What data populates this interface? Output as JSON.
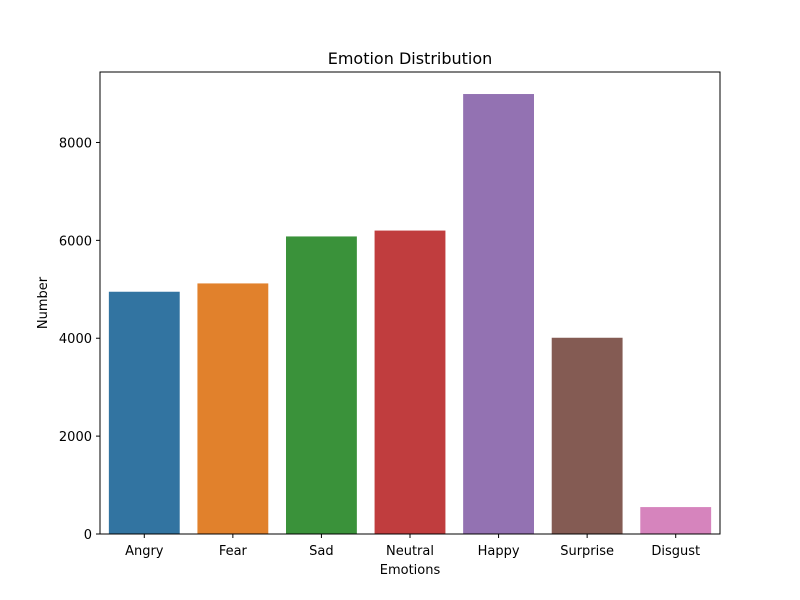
{
  "chart_data": {
    "type": "bar",
    "title": "Emotion Distribution",
    "xlabel": "Emotions",
    "ylabel": "Number",
    "categories": [
      "Angry",
      "Fear",
      "Sad",
      "Neutral",
      "Happy",
      "Surprise",
      "Disgust"
    ],
    "values": [
      4950,
      5120,
      6080,
      6200,
      8990,
      4010,
      550
    ],
    "colors": [
      "#3274a1",
      "#e1812c",
      "#3a923a",
      "#c03d3e",
      "#9372b2",
      "#845b53",
      "#d684bd"
    ],
    "ylim": [
      0,
      9440
    ],
    "yticks": [
      0,
      2000,
      4000,
      6000,
      8000
    ],
    "ytick_labels": [
      "0",
      "2000",
      "4000",
      "6000",
      "8000"
    ],
    "grid": false,
    "legend": false
  }
}
